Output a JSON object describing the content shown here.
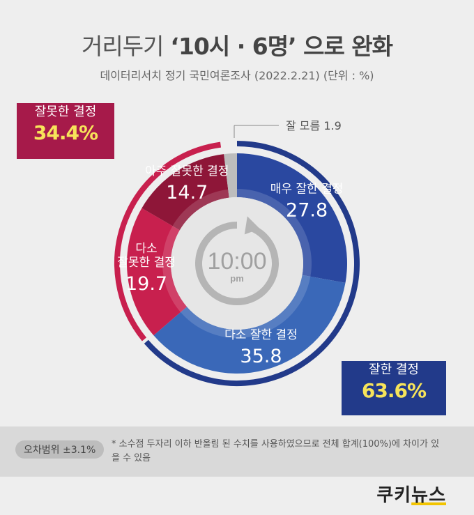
{
  "header": {
    "title_main": "거리두기",
    "title_bold": "‘10시 · 6명’ 으로 완화",
    "subtitle": "데이터리서치 정기 국민여론조사 (2022.2.21)  (단위 : %)"
  },
  "chart_data": {
    "type": "pie",
    "variant": "donut",
    "unit": "%",
    "slices": [
      {
        "label": "잘 모름",
        "value": 1.9,
        "color": "#bdbdbd"
      },
      {
        "label": "매우 잘한 결정",
        "value": 27.8,
        "color": "#2a48a0"
      },
      {
        "label": "다소 잘한 결정",
        "value": 35.8,
        "color": "#3a68b8"
      },
      {
        "label": "다소 잘못한 결정",
        "value": 19.7,
        "color": "#c8204e"
      },
      {
        "label": "아주 잘못한 결정",
        "value": 14.7,
        "color": "#8e1638"
      }
    ],
    "groups": [
      {
        "label": "잘한 결정",
        "value": 63.6,
        "color": "#223a8a"
      },
      {
        "label": "잘못한 결정",
        "value": 34.4,
        "color": "#c8204e"
      }
    ],
    "center_label": "10:00",
    "center_sublabel": "pm",
    "unknown_label": "잘 모름 1.9"
  },
  "callouts": {
    "negative": {
      "label": "잘못한 결정",
      "value": "34.4%"
    },
    "positive": {
      "label": "잘한 결정",
      "value": "63.6%"
    }
  },
  "footer": {
    "margin_of_error": "오차범위 ±3.1%",
    "note": "* 소수점 두자리 이하 반올림 된 수치를 사용하였으므로 전체 합계(100%)에 차이가 있을 수 있음"
  },
  "logo": {
    "part1": "쿠키",
    "part2": "뉴스"
  }
}
